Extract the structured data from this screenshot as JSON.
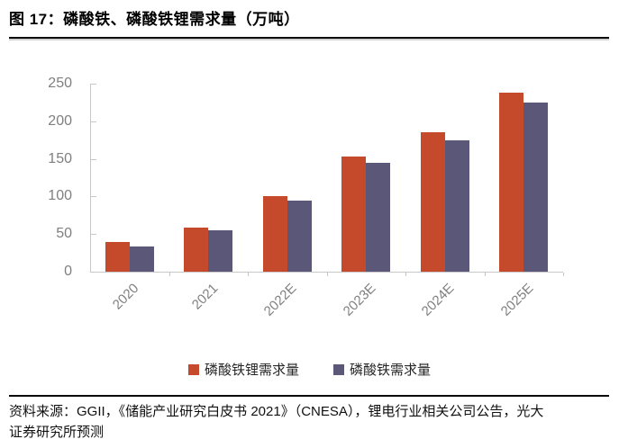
{
  "figure": {
    "title": "图 17：磷酸铁、磷酸铁锂需求量（万吨）",
    "source_line1": "资料来源：GGII，《储能产业研究白皮书 2021》（CNESA），锂电行业相关公司公告，光大",
    "source_line2": "证券研究所预测"
  },
  "colors": {
    "lfp_series": "#C54A2C",
    "fepo4_series": "#5A5778",
    "axis_line": "#C9C7C7",
    "tick_label": "#7F7F7F",
    "text": "#111111"
  },
  "chart_data": {
    "type": "bar",
    "title": "磷酸铁、磷酸铁锂需求量（万吨）",
    "categories": [
      "2020",
      "2021",
      "2022E",
      "2023E",
      "2024E",
      "2025E"
    ],
    "series": [
      {
        "name": "磷酸铁锂需求量",
        "color": "#C54A2C",
        "values": [
          39,
          59,
          101,
          153,
          185,
          238
        ]
      },
      {
        "name": "磷酸铁需求量",
        "color": "#5A5778",
        "values": [
          34,
          55,
          95,
          145,
          175,
          225
        ]
      }
    ],
    "xlabel": "",
    "ylabel": "",
    "ylim": [
      0,
      250
    ],
    "yticks": [
      0,
      50,
      100,
      150,
      200,
      250
    ],
    "grid": false,
    "legend_position": "bottom",
    "x_tick_label_rotation_deg": 45
  }
}
